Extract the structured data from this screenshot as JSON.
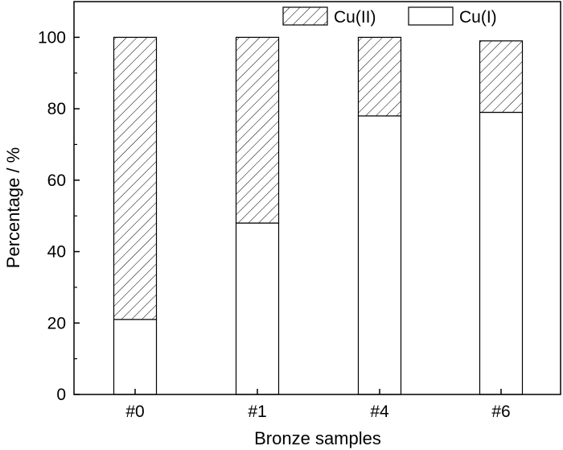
{
  "chart_data": {
    "type": "bar",
    "stacked": true,
    "categories": [
      "#0",
      "#1",
      "#4",
      "#6"
    ],
    "series": [
      {
        "name": "Cu(I)",
        "values": [
          21,
          48,
          78,
          79
        ],
        "pattern": "solid-white"
      },
      {
        "name": "Cu(II)",
        "values": [
          79,
          52,
          22,
          20
        ],
        "pattern": "diagonal-hatch"
      }
    ],
    "xlabel": "Bronze samples",
    "ylabel": "Percentage / %",
    "ylim": [
      0,
      110
    ],
    "yticks": [
      0,
      20,
      40,
      60,
      80,
      100
    ],
    "grid": false,
    "legend": {
      "placement": "top-right",
      "order": [
        "Cu(II)",
        "Cu(I)"
      ]
    },
    "colors": {
      "bar_fill": "#ffffff",
      "stroke": "#000000",
      "hatch": "#000000"
    }
  }
}
